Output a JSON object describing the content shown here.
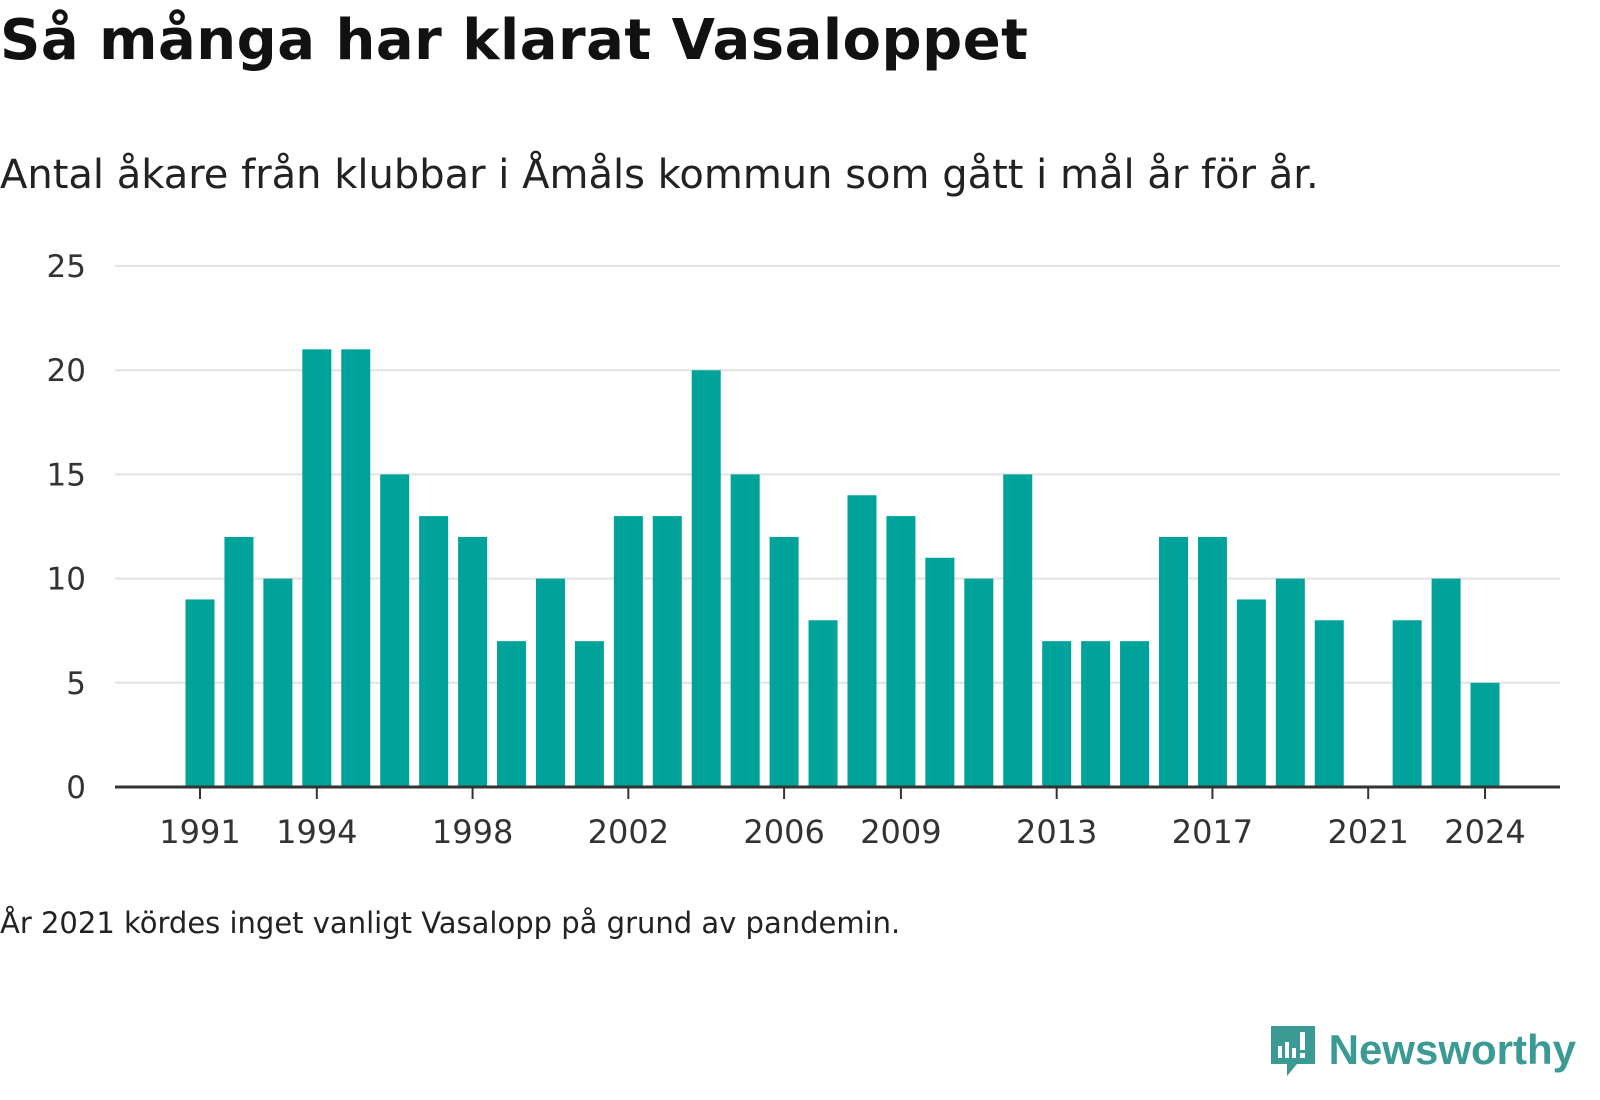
{
  "header": {
    "title": "Så många har klarat Vasaloppet",
    "subtitle": "Antal åkare från klubbar i Åmåls kommun som gått i mål år för år."
  },
  "footer": {
    "note": "År 2021 kördes inget vanligt Vasalopp på grund av pandemin.",
    "brand": "Newsworthy",
    "brand_icon": "newsworthy-logo-icon"
  },
  "colors": {
    "bar": "#00a39a",
    "grid": "#e3e3e3",
    "axis": "#333333",
    "brand": "#3b9a93"
  },
  "chart_data": {
    "type": "bar",
    "x": [
      1991,
      1992,
      1993,
      1994,
      1995,
      1996,
      1997,
      1998,
      1999,
      2000,
      2001,
      2002,
      2003,
      2004,
      2005,
      2006,
      2007,
      2008,
      2009,
      2010,
      2011,
      2012,
      2013,
      2014,
      2015,
      2016,
      2017,
      2018,
      2019,
      2020,
      2021,
      2022,
      2023,
      2024
    ],
    "values": [
      9,
      12,
      10,
      21,
      21,
      15,
      13,
      12,
      7,
      10,
      7,
      13,
      13,
      20,
      15,
      12,
      8,
      14,
      13,
      11,
      10,
      15,
      7,
      7,
      7,
      12,
      12,
      9,
      10,
      8,
      0,
      8,
      10,
      5
    ],
    "x_tick_labels": [
      "1991",
      "1994",
      "1998",
      "2002",
      "2006",
      "2009",
      "2013",
      "2017",
      "2021",
      "2024"
    ],
    "y_ticks": [
      0,
      5,
      10,
      15,
      20,
      25
    ],
    "ylim": [
      0,
      25
    ],
    "grid": true,
    "title": "Så många har klarat Vasaloppet",
    "subtitle": "Antal åkare från klubbar i Åmåls kommun som gått i mål år för år."
  }
}
